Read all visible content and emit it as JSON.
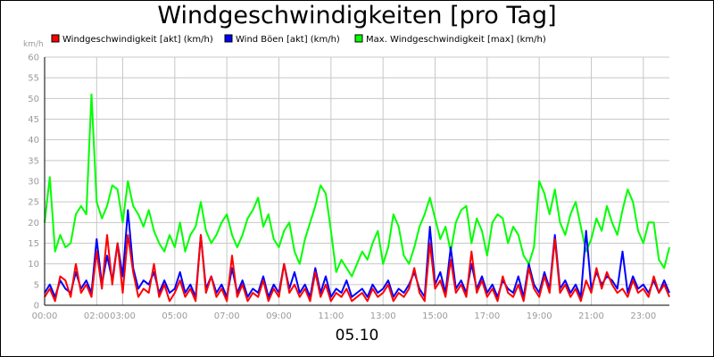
{
  "chart_data": {
    "type": "line",
    "title": "Windgeschwindigkeiten [pro Tag]",
    "ylabel": "km/h",
    "xlabel": "05.10",
    "ylim": [
      0,
      60
    ],
    "yticks": [
      0,
      5,
      10,
      15,
      20,
      25,
      30,
      35,
      40,
      45,
      50,
      55,
      60
    ],
    "xlim": [
      0,
      24
    ],
    "xticks": [
      {
        "h": 0,
        "label": "00:00"
      },
      {
        "h": 2,
        "label": "02:00"
      },
      {
        "h": 3,
        "label": "03:00"
      },
      {
        "h": 5,
        "label": "05:00"
      },
      {
        "h": 7,
        "label": "07:00"
      },
      {
        "h": 9,
        "label": "09:00"
      },
      {
        "h": 11,
        "label": "11:00"
      },
      {
        "h": 13,
        "label": "13:00"
      },
      {
        "h": 15,
        "label": "15:00"
      },
      {
        "h": 17,
        "label": "17:00"
      },
      {
        "h": 19,
        "label": "19:00"
      },
      {
        "h": 21,
        "label": "21:00"
      },
      {
        "h": 23,
        "label": "23:00"
      }
    ],
    "grid": true,
    "legend_position": "top",
    "series": [
      {
        "name": "Windgeschwindigkeit [akt] (km/h)",
        "color": "#ff0000",
        "x": [
          0.0,
          0.2,
          0.4,
          0.6,
          0.8,
          1.0,
          1.2,
          1.4,
          1.6,
          1.8,
          2.0,
          2.2,
          2.4,
          2.6,
          2.8,
          3.0,
          3.2,
          3.4,
          3.6,
          3.8,
          4.0,
          4.2,
          4.4,
          4.6,
          4.8,
          5.0,
          5.2,
          5.4,
          5.6,
          5.8,
          6.0,
          6.2,
          6.4,
          6.6,
          6.8,
          7.0,
          7.2,
          7.4,
          7.6,
          7.8,
          8.0,
          8.2,
          8.4,
          8.6,
          8.8,
          9.0,
          9.2,
          9.4,
          9.6,
          9.8,
          10.0,
          10.2,
          10.4,
          10.6,
          10.8,
          11.0,
          11.2,
          11.4,
          11.6,
          11.8,
          12.0,
          12.2,
          12.4,
          12.6,
          12.8,
          13.0,
          13.2,
          13.4,
          13.6,
          13.8,
          14.0,
          14.2,
          14.4,
          14.6,
          14.8,
          15.0,
          15.2,
          15.4,
          15.6,
          15.8,
          16.0,
          16.2,
          16.4,
          16.6,
          16.8,
          17.0,
          17.2,
          17.4,
          17.6,
          17.8,
          18.0,
          18.2,
          18.4,
          18.6,
          18.8,
          19.0,
          19.2,
          19.4,
          19.6,
          19.8,
          20.0,
          20.2,
          20.4,
          20.6,
          20.8,
          21.0,
          21.2,
          21.4,
          21.6,
          21.8,
          22.0,
          22.2,
          22.4,
          22.6,
          22.8,
          23.0,
          23.2,
          23.4,
          23.6,
          23.8,
          24.0
        ],
        "y": [
          2,
          4,
          1,
          7,
          6,
          2,
          10,
          3,
          5,
          2,
          13,
          4,
          17,
          5,
          15,
          3,
          17,
          8,
          2,
          4,
          3,
          10,
          2,
          5,
          1,
          3,
          6,
          2,
          4,
          1,
          17,
          3,
          7,
          2,
          4,
          1,
          12,
          2,
          5,
          1,
          3,
          2,
          6,
          1,
          4,
          2,
          10,
          3,
          5,
          2,
          4,
          1,
          8,
          2,
          5,
          1,
          3,
          2,
          4,
          1,
          2,
          3,
          1,
          4,
          2,
          3,
          5,
          1,
          3,
          2,
          4,
          9,
          3,
          1,
          15,
          4,
          6,
          2,
          11,
          3,
          5,
          2,
          13,
          3,
          6,
          2,
          4,
          1,
          7,
          3,
          2,
          5,
          1,
          9,
          4,
          2,
          7,
          3,
          16,
          3,
          5,
          2,
          4,
          1,
          6,
          3,
          9,
          4,
          8,
          5,
          3,
          4,
          2,
          6,
          3,
          4,
          2,
          7,
          3,
          5,
          2
        ]
      },
      {
        "name": "Wind Böen [akt] (km/h)",
        "color": "#0000ff",
        "x": [
          0.0,
          0.2,
          0.4,
          0.6,
          0.8,
          1.0,
          1.2,
          1.4,
          1.6,
          1.8,
          2.0,
          2.2,
          2.4,
          2.6,
          2.8,
          3.0,
          3.2,
          3.4,
          3.6,
          3.8,
          4.0,
          4.2,
          4.4,
          4.6,
          4.8,
          5.0,
          5.2,
          5.4,
          5.6,
          5.8,
          6.0,
          6.2,
          6.4,
          6.6,
          6.8,
          7.0,
          7.2,
          7.4,
          7.6,
          7.8,
          8.0,
          8.2,
          8.4,
          8.6,
          8.8,
          9.0,
          9.2,
          9.4,
          9.6,
          9.8,
          10.0,
          10.2,
          10.4,
          10.6,
          10.8,
          11.0,
          11.2,
          11.4,
          11.6,
          11.8,
          12.0,
          12.2,
          12.4,
          12.6,
          12.8,
          13.0,
          13.2,
          13.4,
          13.6,
          13.8,
          14.0,
          14.2,
          14.4,
          14.6,
          14.8,
          15.0,
          15.2,
          15.4,
          15.6,
          15.8,
          16.0,
          16.2,
          16.4,
          16.6,
          16.8,
          17.0,
          17.2,
          17.4,
          17.6,
          17.8,
          18.0,
          18.2,
          18.4,
          18.6,
          18.8,
          19.0,
          19.2,
          19.4,
          19.6,
          19.8,
          20.0,
          20.2,
          20.4,
          20.6,
          20.8,
          21.0,
          21.2,
          21.4,
          21.6,
          21.8,
          22.0,
          22.2,
          22.4,
          22.6,
          22.8,
          23.0,
          23.2,
          23.4,
          23.6,
          23.8,
          24.0
        ],
        "y": [
          3,
          5,
          2,
          6,
          4,
          3,
          8,
          4,
          6,
          3,
          16,
          5,
          12,
          6,
          15,
          7,
          23,
          9,
          4,
          6,
          5,
          8,
          3,
          6,
          3,
          4,
          8,
          3,
          5,
          2,
          17,
          4,
          7,
          3,
          5,
          2,
          9,
          3,
          6,
          2,
          4,
          3,
          7,
          2,
          5,
          3,
          10,
          4,
          8,
          3,
          5,
          2,
          9,
          3,
          7,
          2,
          4,
          3,
          6,
          2,
          3,
          4,
          2,
          5,
          3,
          4,
          6,
          2,
          4,
          3,
          5,
          8,
          4,
          2,
          19,
          5,
          8,
          3,
          14,
          4,
          6,
          3,
          10,
          4,
          7,
          3,
          5,
          2,
          6,
          4,
          3,
          7,
          2,
          10,
          5,
          3,
          8,
          4,
          17,
          4,
          6,
          3,
          5,
          2,
          18,
          4,
          8,
          5,
          7,
          6,
          4,
          13,
          3,
          7,
          4,
          5,
          3,
          6,
          3,
          6,
          3
        ]
      },
      {
        "name": "Max. Windgeschwindigkeit [max] (km/h)",
        "color": "#00ff00",
        "x": [
          0.0,
          0.2,
          0.4,
          0.6,
          0.8,
          1.0,
          1.2,
          1.4,
          1.6,
          1.8,
          2.0,
          2.2,
          2.4,
          2.6,
          2.8,
          3.0,
          3.2,
          3.4,
          3.6,
          3.8,
          4.0,
          4.2,
          4.4,
          4.6,
          4.8,
          5.0,
          5.2,
          5.4,
          5.6,
          5.8,
          6.0,
          6.2,
          6.4,
          6.6,
          6.8,
          7.0,
          7.2,
          7.4,
          7.6,
          7.8,
          8.0,
          8.2,
          8.4,
          8.6,
          8.8,
          9.0,
          9.2,
          9.4,
          9.6,
          9.8,
          10.0,
          10.2,
          10.4,
          10.6,
          10.8,
          11.0,
          11.2,
          11.4,
          11.6,
          11.8,
          12.0,
          12.2,
          12.4,
          12.6,
          12.8,
          13.0,
          13.2,
          13.4,
          13.6,
          13.8,
          14.0,
          14.2,
          14.4,
          14.6,
          14.8,
          15.0,
          15.2,
          15.4,
          15.6,
          15.8,
          16.0,
          16.2,
          16.4,
          16.6,
          16.8,
          17.0,
          17.2,
          17.4,
          17.6,
          17.8,
          18.0,
          18.2,
          18.4,
          18.6,
          18.8,
          19.0,
          19.2,
          19.4,
          19.6,
          19.8,
          20.0,
          20.2,
          20.4,
          20.6,
          20.8,
          21.0,
          21.2,
          21.4,
          21.6,
          21.8,
          22.0,
          22.2,
          22.4,
          22.6,
          22.8,
          23.0,
          23.2,
          23.4,
          23.6,
          23.8,
          24.0
        ],
        "y": [
          20,
          31,
          13,
          17,
          14,
          15,
          22,
          24,
          22,
          51,
          25,
          21,
          24,
          29,
          28,
          20,
          30,
          24,
          22,
          19,
          23,
          18,
          15,
          13,
          17,
          14,
          20,
          13,
          17,
          19,
          25,
          18,
          15,
          17,
          20,
          22,
          17,
          14,
          17,
          21,
          23,
          26,
          19,
          22,
          16,
          14,
          18,
          20,
          13,
          10,
          16,
          20,
          24,
          29,
          27,
          18,
          8,
          11,
          9,
          7,
          10,
          13,
          11,
          15,
          18,
          10,
          14,
          22,
          19,
          12,
          10,
          14,
          19,
          22,
          26,
          21,
          16,
          19,
          13,
          20,
          23,
          24,
          15,
          21,
          18,
          12,
          20,
          22,
          21,
          15,
          19,
          17,
          12,
          10,
          14,
          30,
          27,
          22,
          28,
          20,
          17,
          22,
          25,
          19,
          13,
          16,
          21,
          18,
          24,
          20,
          17,
          23,
          28,
          25,
          18,
          15,
          20,
          20,
          11,
          9,
          14
        ]
      }
    ]
  }
}
